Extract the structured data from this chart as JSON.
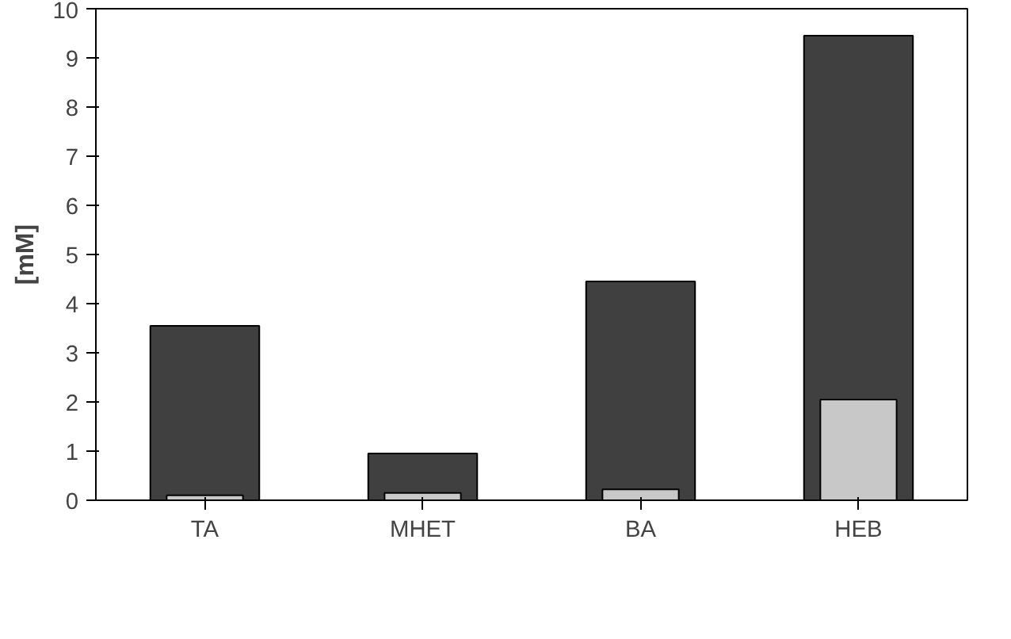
{
  "chart_data": {
    "type": "bar",
    "ylabel": "[mM]",
    "categories": [
      "TA",
      "MHET",
      "BA",
      "HEB"
    ],
    "series": [
      {
        "color": "#404040",
        "values": [
          3.55,
          0.95,
          4.45,
          9.45
        ]
      },
      {
        "color": "#c8c8c8",
        "values": [
          0.1,
          0.15,
          0.22,
          2.05
        ]
      }
    ],
    "ylim": [
      0,
      10
    ],
    "yticks": [
      0,
      1,
      2,
      3,
      4,
      5,
      6,
      7,
      8,
      9,
      10
    ],
    "grid": false
  }
}
